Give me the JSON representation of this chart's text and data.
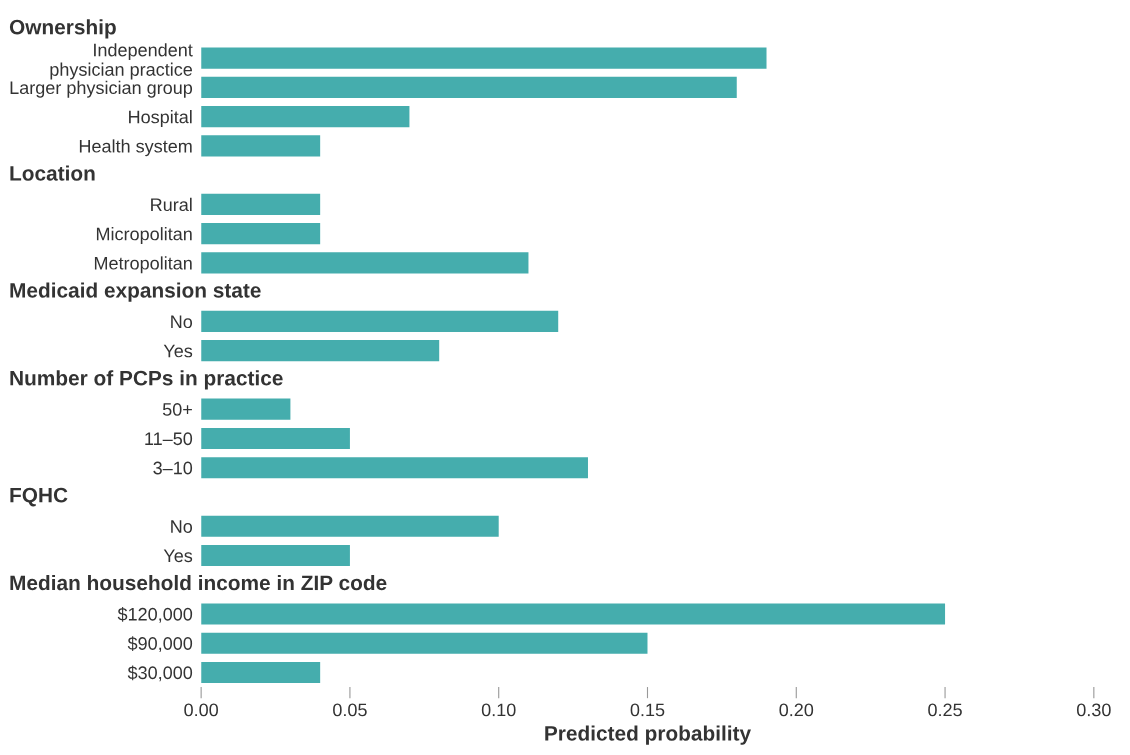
{
  "chart_data": {
    "type": "bar",
    "orientation": "horizontal",
    "xlabel": "Predicted probability",
    "categories": [
      null,
      "Independent\nphysician practice",
      "Larger physician group",
      "Hospital",
      "Health system",
      null,
      "Rural",
      "Micropolitan",
      "Metropolitan",
      null,
      "No",
      "Yes",
      null,
      "50+",
      "11–50",
      "3–10",
      null,
      "No",
      "Yes",
      null,
      "$120,000",
      "$90,000",
      "$30,000"
    ],
    "annotations": [
      "Ownership",
      "Location",
      "Medicaid expansion state",
      "Number of PCPs in practice",
      "FQHC",
      "Median household income in ZIP code"
    ],
    "values": [
      null,
      0.19,
      0.18,
      0.07,
      0.04,
      null,
      0.04,
      0.04,
      0.11,
      null,
      0.12,
      0.08,
      null,
      0.03,
      0.05,
      0.13,
      null,
      0.1,
      0.05,
      null,
      0.25,
      0.15,
      0.04
    ],
    "color": "#45adad",
    "xlim": [
      0,
      0.3
    ],
    "xticks": [
      {
        "value": 0,
        "label": "0.00"
      },
      0.05,
      {
        "value": 0.1,
        "label": "0.10"
      },
      0.15,
      {
        "value": 0.2,
        "label": "0.20"
      },
      0.25,
      {
        "value": 0.3,
        "label": "0.30"
      }
    ],
    "grid": false
  }
}
